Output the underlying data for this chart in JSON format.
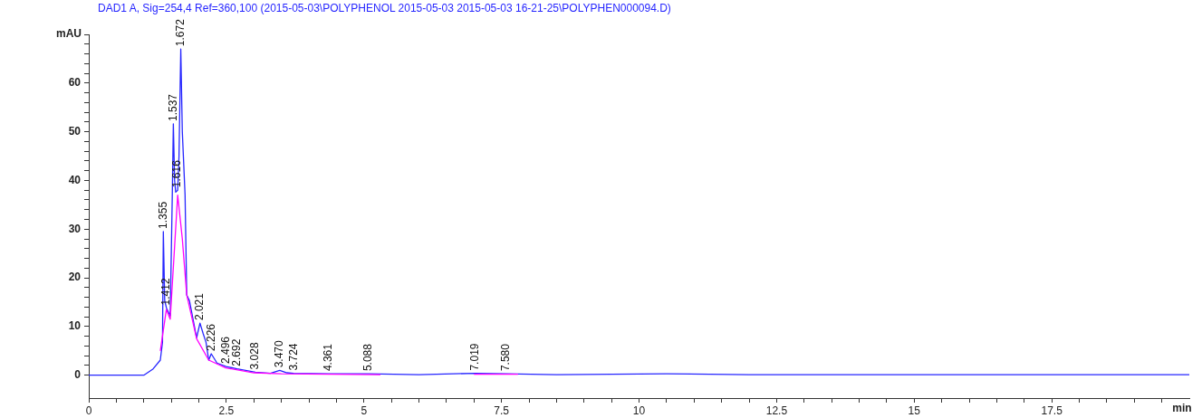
{
  "chart_data": {
    "type": "line",
    "title": "DAD1 A, Sig=254,4 Ref=360,100 (2015-05-03\\POLYPHENOL 2015-05-03 2015-05-03 16-21-25\\POLYPHEN000094.D)",
    "xlabel": "min",
    "ylabel": "mAU",
    "series": [
      {
        "color": "#2626ff",
        "x": [
          0,
          1.0,
          1.17,
          1.3,
          1.34,
          1.355,
          1.38,
          1.412,
          1.48,
          1.52,
          1.537,
          1.56,
          1.58,
          1.616,
          1.64,
          1.672,
          1.7,
          1.75,
          1.78,
          1.83,
          1.96,
          2.021,
          2.08,
          2.13,
          2.18,
          2.226,
          2.33,
          2.496,
          2.692,
          3.028,
          3.3,
          3.47,
          3.6,
          3.724,
          4.361,
          5.088,
          6.0,
          7.019,
          7.58,
          8.5,
          10.5,
          12.0,
          15.0,
          20.0
        ],
        "values": [
          0,
          0,
          1.3,
          3.1,
          6.8,
          29.5,
          15.3,
          13.8,
          12.2,
          38.4,
          51.6,
          40,
          37.6,
          38,
          45,
          67,
          50,
          37,
          16.5,
          15.3,
          7.7,
          10.7,
          8.5,
          6.8,
          3.1,
          4.4,
          2.5,
          1.8,
          1.3,
          0.6,
          0.4,
          1.0,
          0.5,
          0.4,
          0.3,
          0.3,
          0.1,
          0.4,
          0.3,
          0.1,
          0.3,
          0.1,
          0.1,
          0.1
        ]
      },
      {
        "color": "#ff00ff",
        "x": [
          1.3,
          1.41,
          1.48,
          1.616,
          1.7,
          1.78,
          1.96,
          2.18,
          2.49,
          3.0,
          3.5,
          5.3,
          6.8,
          7.0,
          7.8
        ],
        "values": [
          5.0,
          13.5,
          11.5,
          37.0,
          28,
          16.5,
          7.5,
          3.1,
          1.5,
          0.5,
          0.3,
          0.1,
          null,
          0.2,
          0.2
        ]
      }
    ],
    "annotations": [
      {
        "text": "1.355",
        "x": 1.355,
        "y": 29.5
      },
      {
        "text": "1.412",
        "x": 1.412,
        "y": 13.8
      },
      {
        "text": "1.537",
        "x": 1.537,
        "y": 51.6
      },
      {
        "text": "1.616",
        "x": 1.616,
        "y": 38
      },
      {
        "text": "1.672",
        "x": 1.672,
        "y": 67
      },
      {
        "text": "2.021",
        "x": 2.021,
        "y": 10.7
      },
      {
        "text": "2.226",
        "x": 2.226,
        "y": 4.4
      },
      {
        "text": "2.496",
        "x": 2.496,
        "y": 1.8
      },
      {
        "text": "2.692",
        "x": 2.692,
        "y": 1.3
      },
      {
        "text": "3.028",
        "x": 3.028,
        "y": 0.6
      },
      {
        "text": "3.470",
        "x": 3.47,
        "y": 1.0
      },
      {
        "text": "3.724",
        "x": 3.724,
        "y": 0.4
      },
      {
        "text": "4.361",
        "x": 4.361,
        "y": 0.3
      },
      {
        "text": "5.088",
        "x": 5.088,
        "y": 0.3
      },
      {
        "text": "7.019",
        "x": 7.019,
        "y": 0.4
      },
      {
        "text": "7.580",
        "x": 7.58,
        "y": 0.3
      }
    ],
    "xlim": [
      0,
      20
    ],
    "ylim": [
      -4.7,
      70
    ],
    "xticks": [
      0,
      {
        "value": 0.5,
        "label": null
      },
      {
        "value": 1,
        "label": null
      },
      {
        "value": 1.5,
        "label": null
      },
      {
        "value": 2,
        "label": null
      },
      2.5,
      {
        "value": 3,
        "label": null
      },
      {
        "value": 3.5,
        "label": null
      },
      {
        "value": 4,
        "label": null
      },
      {
        "value": 4.5,
        "label": null
      },
      5,
      {
        "value": 5.5,
        "label": null
      },
      {
        "value": 6,
        "label": null
      },
      {
        "value": 6.5,
        "label": null
      },
      {
        "value": 7,
        "label": null
      },
      7.5,
      {
        "value": 8,
        "label": null
      },
      {
        "value": 8.5,
        "label": null
      },
      {
        "value": 9,
        "label": null
      },
      {
        "value": 9.5,
        "label": null
      },
      10,
      {
        "value": 10.5,
        "label": null
      },
      {
        "value": 11,
        "label": null
      },
      {
        "value": 11.5,
        "label": null
      },
      {
        "value": 12,
        "label": null
      },
      12.5,
      {
        "value": 13,
        "label": null
      },
      {
        "value": 13.5,
        "label": null
      },
      {
        "value": 14,
        "label": null
      },
      {
        "value": 14.5,
        "label": null
      },
      15,
      {
        "value": 15.5,
        "label": null
      },
      {
        "value": 16,
        "label": null
      },
      {
        "value": 16.5,
        "label": null
      },
      {
        "value": 17,
        "label": null
      },
      17.5,
      {
        "value": 18,
        "label": null
      },
      {
        "value": 18.5,
        "label": null
      },
      {
        "value": 19,
        "label": null
      },
      {
        "value": 19.5,
        "label": null
      }
    ],
    "yticks": [
      0,
      {
        "value": 2,
        "label": null
      },
      {
        "value": 4,
        "label": null
      },
      {
        "value": 6,
        "label": null
      },
      {
        "value": 8,
        "label": null
      },
      10,
      {
        "value": 12,
        "label": null
      },
      {
        "value": 14,
        "label": null
      },
      {
        "value": 16,
        "label": null
      },
      {
        "value": 18,
        "label": null
      },
      20,
      {
        "value": 22,
        "label": null
      },
      {
        "value": 24,
        "label": null
      },
      {
        "value": 26,
        "label": null
      },
      {
        "value": 28,
        "label": null
      },
      30,
      {
        "value": 32,
        "label": null
      },
      {
        "value": 34,
        "label": null
      },
      {
        "value": 36,
        "label": null
      },
      {
        "value": 38,
        "label": null
      },
      40,
      {
        "value": 42,
        "label": null
      },
      {
        "value": 44,
        "label": null
      },
      {
        "value": 46,
        "label": null
      },
      {
        "value": 48,
        "label": null
      },
      50,
      {
        "value": 52,
        "label": null
      },
      {
        "value": 54,
        "label": null
      },
      {
        "value": 56,
        "label": null
      },
      {
        "value": 58,
        "label": null
      },
      60,
      {
        "value": 62,
        "label": null
      },
      {
        "value": 64,
        "label": null
      },
      {
        "value": 66,
        "label": null
      },
      {
        "value": 68,
        "label": null
      },
      {
        "value": 70,
        "label": null
      }
    ],
    "grid": false,
    "legend": false,
    "marker": "none",
    "line_style": "solid"
  }
}
